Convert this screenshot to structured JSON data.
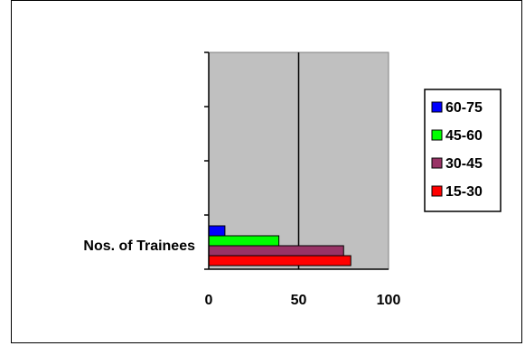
{
  "chart_data": {
    "type": "bar",
    "orientation": "horizontal",
    "categories": [
      "Nos. of Trainees"
    ],
    "series": [
      {
        "name": "15-30",
        "values": [
          79
        ],
        "color": "#ff0000"
      },
      {
        "name": "30-45",
        "values": [
          75
        ],
        "color": "#993366"
      },
      {
        "name": "45-60",
        "values": [
          39
        ],
        "color": "#00ff00"
      },
      {
        "name": "60-75",
        "values": [
          9
        ],
        "color": "#0000ff"
      }
    ],
    "xlim": [
      0,
      100
    ],
    "x_ticks": [
      "0",
      "50",
      "100"
    ],
    "plot_background": "#c0c0c0",
    "grid": "vertical major",
    "legend_position": "right",
    "legend_order": [
      "60-75",
      "45-60",
      "30-45",
      "15-30"
    ]
  }
}
